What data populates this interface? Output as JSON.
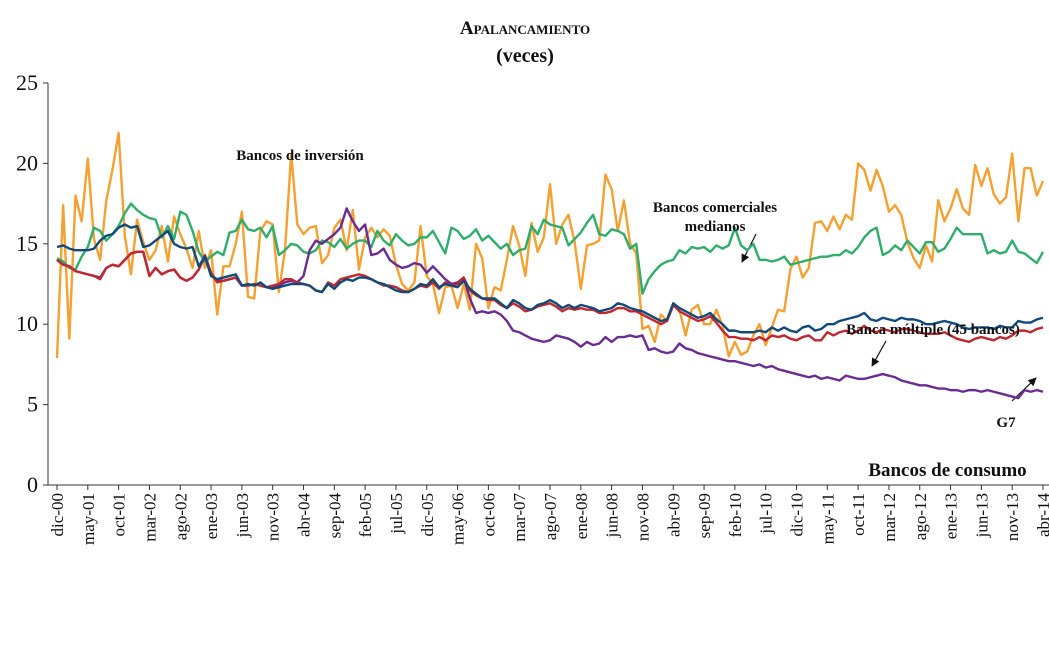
{
  "chart_data": {
    "type": "line",
    "title": "Apalancamiento",
    "subtitle": "(veces)",
    "categories": [
      "dic-00",
      null,
      null,
      null,
      null,
      "may-01",
      null,
      null,
      null,
      null,
      "oct-01",
      null,
      null,
      null,
      null,
      "mar-02",
      null,
      null,
      null,
      null,
      "ago-02",
      null,
      null,
      null,
      null,
      "ene-03",
      null,
      null,
      null,
      null,
      "jun-03",
      null,
      null,
      null,
      null,
      "nov-03",
      null,
      null,
      null,
      null,
      "abr-04",
      null,
      null,
      null,
      null,
      "sep-04",
      null,
      null,
      null,
      null,
      "feb-05",
      null,
      null,
      null,
      null,
      "jul-05",
      null,
      null,
      null,
      null,
      "dic-05",
      null,
      null,
      null,
      null,
      "may-06",
      null,
      null,
      null,
      null,
      "oct-06",
      null,
      null,
      null,
      null,
      "mar-07",
      null,
      null,
      null,
      null,
      "ago-07",
      null,
      null,
      null,
      null,
      "ene-08",
      null,
      null,
      null,
      null,
      "jun-08",
      null,
      null,
      null,
      null,
      "nov-08",
      null,
      null,
      null,
      null,
      "abr-09",
      null,
      null,
      null,
      null,
      "sep-09",
      null,
      null,
      null,
      null,
      "feb-10",
      null,
      null,
      null,
      null,
      "jul-10",
      null,
      null,
      null,
      null,
      "dic-10",
      null,
      null,
      null,
      null,
      "may-11",
      null,
      null,
      null,
      null,
      "oct-11",
      null,
      null,
      null,
      null,
      "mar-12",
      null,
      null,
      null,
      null,
      "ago-12",
      null,
      null,
      null,
      null,
      "ene-13",
      null,
      null,
      null,
      null,
      "jun-13",
      null,
      null,
      null,
      null,
      "nov-13",
      null,
      null,
      null,
      null,
      "abr-14"
    ],
    "series": [
      {
        "name": "Bancos de inversión",
        "color": "#f5a030",
        "values": [
          7.9,
          17.4,
          9.1,
          18.0,
          16.4,
          20.3,
          15.3,
          14.0,
          17.7,
          19.6,
          21.9,
          15.5,
          13.1,
          16.5,
          15.1,
          14.0,
          14.6,
          16.1,
          13.9,
          16.7,
          15.6,
          14.7,
          13.5,
          15.8,
          13.5,
          14.6,
          10.6,
          13.6,
          13.6,
          15.0,
          17.0,
          11.7,
          11.6,
          15.8,
          16.4,
          16.2,
          12.0,
          14.6,
          20.6,
          16.2,
          15.6,
          16.0,
          16.1,
          13.8,
          14.3,
          16.0,
          16.5,
          14.6,
          17.1,
          13.4,
          15.4,
          16.0,
          15.4,
          15.9,
          15.5,
          13.7,
          12.5,
          12.1,
          12.6,
          16.1,
          13.0,
          12.5,
          10.7,
          12.3,
          12.4,
          11.0,
          12.5,
          10.9,
          15.0,
          14.1,
          11.0,
          12.3,
          12.1,
          14.0,
          16.1,
          14.9,
          13.0,
          16.3,
          14.5,
          15.4,
          18.7,
          15.0,
          16.2,
          16.8,
          15.1,
          12.2,
          14.9,
          15.0,
          15.2,
          19.3,
          18.4,
          15.8,
          17.7,
          15.0,
          14.4,
          9.7,
          9.9,
          8.9,
          10.6,
          10.2,
          11.2,
          10.9,
          9.3,
          10.9,
          11.2,
          10.0,
          10.0,
          10.9,
          9.9,
          8.0,
          8.9,
          8.1,
          8.3,
          9.3,
          10.0,
          8.7,
          9.8,
          10.9,
          10.8,
          13.4,
          14.2,
          12.9,
          13.5,
          16.3,
          16.4,
          15.8,
          16.7,
          15.9,
          16.8,
          16.5,
          20.0,
          19.6,
          18.3,
          19.6,
          18.6,
          17.0,
          17.4,
          16.8,
          15.1,
          14.1,
          13.5,
          14.9,
          13.9,
          17.7,
          16.4,
          17.2,
          18.4,
          17.2,
          16.8,
          19.9,
          18.6,
          19.7,
          18.1,
          17.5,
          17.9,
          20.6,
          16.4,
          19.7,
          19.7,
          18.0,
          18.9
        ]
      },
      {
        "name": "Bancos comerciales medianos",
        "color": "#2fad6b",
        "values": [
          14.1,
          13.9,
          13.5,
          13.4,
          14.2,
          14.8,
          16.0,
          15.8,
          15.2,
          15.6,
          16.1,
          16.9,
          17.5,
          17.1,
          16.8,
          16.6,
          16.5,
          15.4,
          16.1,
          15.3,
          17.0,
          16.8,
          15.8,
          14.5,
          13.9,
          14.2,
          14.5,
          14.3,
          15.7,
          15.8,
          16.5,
          15.9,
          15.8,
          16.0,
          15.4,
          16.1,
          14.3,
          14.6,
          15.0,
          14.9,
          14.5,
          14.4,
          14.6,
          15.2,
          15.1,
          14.8,
          15.3,
          14.7,
          15.0,
          15.2,
          15.2,
          14.8,
          15.8,
          15.2,
          14.9,
          15.6,
          15.2,
          14.9,
          15.0,
          15.4,
          15.4,
          15.8,
          15.1,
          14.4,
          16.0,
          15.8,
          15.3,
          15.5,
          15.9,
          15.2,
          15.5,
          15.1,
          14.7,
          15.0,
          14.3,
          14.6,
          14.7,
          16.1,
          15.6,
          16.5,
          16.2,
          16.1,
          16.0,
          14.9,
          15.3,
          15.7,
          16.3,
          16.8,
          15.6,
          15.5,
          15.9,
          15.8,
          15.6,
          14.7,
          15.0,
          11.9,
          12.8,
          13.3,
          13.7,
          13.9,
          14.0,
          14.6,
          14.4,
          14.8,
          14.7,
          14.8,
          14.5,
          14.9,
          14.7,
          14.9,
          16.0,
          14.9,
          14.6,
          15.0,
          14.0,
          14.0,
          13.9,
          14.0,
          14.2,
          13.7,
          13.8,
          13.9,
          14.0,
          14.1,
          14.2,
          14.2,
          14.3,
          14.3,
          14.6,
          14.4,
          14.8,
          15.4,
          15.8,
          16.0,
          14.3,
          14.5,
          14.9,
          14.6,
          15.2,
          14.8,
          14.4,
          15.1,
          15.1,
          14.5,
          14.7,
          15.3,
          16.0,
          15.6,
          15.6,
          15.6,
          15.6,
          14.4,
          14.6,
          14.4,
          14.5,
          15.2,
          14.5,
          14.4,
          14.1,
          13.8,
          14.5
        ]
      },
      {
        "name": "Bancos de consumo",
        "color": "#6b2c91",
        "values": [
          14.0,
          13.7,
          13.6,
          13.3,
          13.2,
          13.1,
          13.0,
          12.9,
          13.5,
          13.7,
          13.6,
          14.0,
          14.4,
          14.5,
          14.5,
          13.0,
          13.5,
          13.1,
          13.3,
          13.4,
          12.9,
          12.7,
          12.9,
          13.4,
          14.2,
          13.1,
          12.7,
          12.7,
          12.8,
          12.9,
          12.4,
          12.4,
          12.5,
          12.4,
          12.3,
          12.3,
          12.4,
          12.6,
          12.7,
          12.6,
          13.0,
          14.6,
          15.2,
          15.0,
          15.3,
          15.6,
          16.0,
          17.2,
          16.4,
          15.8,
          16.2,
          14.3,
          14.4,
          14.7,
          14.0,
          13.7,
          13.5,
          13.6,
          13.8,
          13.7,
          13.2,
          13.6,
          13.2,
          12.8,
          12.5,
          12.6,
          12.9,
          11.6,
          10.7,
          10.8,
          10.7,
          10.8,
          10.6,
          10.2,
          9.6,
          9.5,
          9.3,
          9.1,
          9.0,
          8.9,
          9.0,
          9.3,
          9.2,
          9.1,
          8.9,
          8.6,
          8.9,
          8.7,
          8.8,
          9.2,
          8.9,
          9.2,
          9.2,
          9.3,
          9.2,
          9.3,
          8.4,
          8.5,
          8.3,
          8.2,
          8.3,
          8.8,
          8.5,
          8.4,
          8.2,
          8.1,
          8.0,
          7.9,
          7.8,
          7.7,
          7.7,
          7.6,
          7.5,
          7.4,
          7.5,
          7.3,
          7.4,
          7.2,
          7.1,
          7.0,
          6.9,
          6.8,
          6.7,
          6.8,
          6.6,
          6.7,
          6.6,
          6.5,
          6.8,
          6.7,
          6.6,
          6.6,
          6.7,
          6.8,
          6.9,
          6.8,
          6.7,
          6.5,
          6.4,
          6.3,
          6.2,
          6.2,
          6.1,
          6.0,
          6.0,
          5.9,
          5.9,
          5.8,
          5.9,
          5.9,
          5.8,
          5.9,
          5.8,
          5.7,
          5.6,
          5.5,
          5.4,
          5.9,
          5.8,
          5.9,
          5.8
        ]
      },
      {
        "name": "G7",
        "color": "#c1272d",
        "values": [
          14.0,
          13.7,
          13.6,
          13.3,
          13.2,
          13.1,
          13.0,
          12.8,
          13.5,
          13.7,
          13.6,
          14.0,
          14.4,
          14.5,
          14.5,
          13.0,
          13.5,
          13.1,
          13.3,
          13.4,
          12.9,
          12.7,
          12.9,
          13.4,
          14.3,
          13.2,
          12.6,
          12.7,
          12.8,
          12.9,
          12.4,
          12.4,
          12.5,
          12.4,
          12.3,
          12.4,
          12.5,
          12.8,
          12.8,
          12.6,
          12.5,
          12.4,
          12.1,
          12.0,
          12.6,
          12.4,
          12.8,
          12.9,
          13.0,
          13.1,
          13.0,
          12.8,
          12.6,
          12.4,
          12.4,
          12.3,
          12.1,
          12.0,
          12.2,
          12.4,
          12.3,
          12.6,
          12.2,
          12.6,
          12.4,
          12.5,
          12.9,
          12.1,
          11.8,
          11.6,
          11.5,
          11.5,
          11.2,
          11.0,
          11.3,
          11.1,
          10.8,
          10.9,
          11.1,
          11.2,
          11.3,
          11.1,
          10.8,
          11.0,
          10.9,
          11.0,
          10.9,
          10.9,
          10.7,
          10.7,
          10.8,
          11.0,
          11.0,
          10.8,
          10.8,
          10.6,
          10.4,
          10.2,
          10.0,
          10.2,
          11.2,
          10.8,
          10.6,
          10.4,
          10.2,
          10.3,
          10.5,
          10.1,
          9.6,
          9.2,
          9.2,
          9.1,
          9.1,
          9.0,
          9.2,
          9.0,
          9.3,
          9.2,
          9.3,
          9.1,
          9.0,
          9.2,
          9.3,
          9.0,
          9.0,
          9.5,
          9.3,
          9.5,
          9.6,
          9.4,
          9.6,
          9.9,
          9.6,
          9.5,
          9.7,
          9.6,
          9.5,
          9.7,
          9.7,
          9.6,
          9.5,
          9.4,
          9.4,
          9.4,
          9.5,
          9.3,
          9.1,
          9.0,
          8.9,
          9.1,
          9.2,
          9.1,
          9.0,
          9.2,
          9.1,
          9.3,
          9.6,
          9.6,
          9.5,
          9.7,
          9.8
        ]
      },
      {
        "name": "Banca múltiple (45 bancos)",
        "color": "#0f4a7a",
        "values": [
          14.8,
          14.9,
          14.7,
          14.6,
          14.6,
          14.6,
          14.7,
          15.2,
          15.5,
          15.6,
          16.0,
          16.2,
          16.0,
          16.1,
          14.8,
          14.9,
          15.2,
          15.5,
          15.8,
          15.0,
          14.8,
          14.7,
          14.8,
          13.6,
          14.2,
          13.0,
          12.8,
          12.9,
          13.0,
          13.1,
          12.4,
          12.5,
          12.4,
          12.6,
          12.3,
          12.2,
          12.3,
          12.4,
          12.5,
          12.5,
          12.5,
          12.4,
          12.1,
          12.0,
          12.5,
          12.2,
          12.6,
          12.8,
          12.7,
          12.9,
          12.9,
          12.8,
          12.6,
          12.5,
          12.3,
          12.1,
          12.0,
          12.0,
          12.2,
          12.5,
          12.4,
          12.8,
          12.3,
          12.5,
          12.4,
          12.3,
          12.7,
          12.2,
          11.9,
          11.6,
          11.6,
          11.6,
          11.3,
          11.0,
          11.5,
          11.3,
          11.0,
          10.9,
          11.2,
          11.3,
          11.5,
          11.3,
          11.0,
          11.2,
          11.0,
          11.2,
          11.1,
          11.0,
          10.8,
          10.9,
          11.0,
          11.3,
          11.2,
          11.0,
          10.9,
          10.8,
          10.6,
          10.4,
          10.2,
          10.3,
          11.3,
          11.0,
          10.8,
          10.6,
          10.4,
          10.5,
          10.7,
          10.3,
          10.0,
          9.6,
          9.6,
          9.5,
          9.5,
          9.5,
          9.6,
          9.5,
          9.8,
          9.6,
          9.8,
          9.6,
          9.5,
          9.8,
          9.9,
          9.6,
          9.7,
          10.0,
          10.0,
          10.2,
          10.3,
          10.4,
          10.5,
          10.7,
          10.3,
          10.2,
          10.4,
          10.3,
          10.2,
          10.4,
          10.3,
          10.3,
          10.2,
          10.0,
          10.0,
          10.1,
          10.2,
          10.1,
          10.0,
          9.8,
          9.7,
          9.8,
          9.8,
          9.8,
          9.7,
          9.9,
          9.8,
          9.8,
          10.2,
          10.1,
          10.1,
          10.3,
          10.4
        ]
      }
    ],
    "ylim": [
      0,
      25
    ],
    "yticks": [
      0,
      5,
      10,
      15,
      20,
      25
    ],
    "grid": false
  }
}
